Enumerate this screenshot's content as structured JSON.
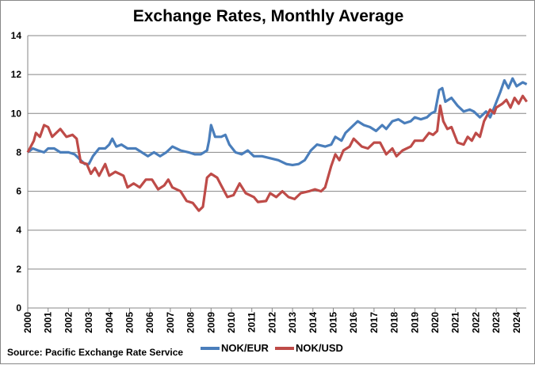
{
  "chart_data": {
    "type": "line",
    "title": "Exchange Rates, Monthly Average",
    "source": "Source: Pacific Exchange Rate Service",
    "xlabel": "",
    "ylabel": "",
    "ylim": [
      0,
      14
    ],
    "yticks": [
      "0",
      "2",
      "4",
      "6",
      "8",
      "10",
      "12",
      "14"
    ],
    "xlim": [
      2000,
      2024.5
    ],
    "xticks": [
      "2000",
      "2001",
      "2002",
      "2003",
      "2004",
      "2005",
      "2006",
      "2007",
      "2008",
      "2009",
      "2010",
      "2011",
      "2012",
      "2013",
      "2014",
      "2015",
      "2016",
      "2017",
      "2018",
      "2019",
      "2020",
      "2021",
      "2022",
      "2023",
      "2024"
    ],
    "grid": true,
    "legend": "bottom",
    "series": [
      {
        "name": "NOK/EUR",
        "color": "#4a7ebb",
        "x": [
          2000,
          2000.25,
          2000.5,
          2000.8,
          2001,
          2001.3,
          2001.6,
          2002,
          2002.3,
          2002.6,
          2002.8,
          2003.0,
          2003.2,
          2003.5,
          2003.8,
          2004.0,
          2004.15,
          2004.35,
          2004.6,
          2004.9,
          2005.3,
          2005.6,
          2005.9,
          2006.2,
          2006.5,
          2006.8,
          2007.1,
          2007.5,
          2007.9,
          2008.2,
          2008.5,
          2008.8,
          2008.9,
          2009.0,
          2009.2,
          2009.5,
          2009.7,
          2009.9,
          2010.2,
          2010.5,
          2010.8,
          2011.1,
          2011.5,
          2011.9,
          2012.3,
          2012.7,
          2013.0,
          2013.3,
          2013.6,
          2013.9,
          2014.2,
          2014.6,
          2014.9,
          2015.1,
          2015.4,
          2015.6,
          2015.9,
          2016.2,
          2016.5,
          2016.8,
          2017.1,
          2017.4,
          2017.6,
          2017.9,
          2018.2,
          2018.5,
          2018.8,
          2019.0,
          2019.3,
          2019.6,
          2019.8,
          2020.0,
          2020.2,
          2020.35,
          2020.5,
          2020.8,
          2021.1,
          2021.4,
          2021.7,
          2021.9,
          2022.2,
          2022.5,
          2022.7,
          2022.9,
          2023.2,
          2023.4,
          2023.6,
          2023.8,
          2024.0,
          2024.3,
          2024.5
        ],
        "y": [
          8.0,
          8.2,
          8.1,
          8.0,
          8.2,
          8.2,
          8.0,
          8.0,
          7.9,
          7.6,
          7.4,
          7.4,
          7.8,
          8.2,
          8.2,
          8.4,
          8.7,
          8.3,
          8.4,
          8.2,
          8.2,
          8.0,
          7.8,
          8.0,
          7.8,
          8.0,
          8.3,
          8.1,
          8.0,
          7.9,
          7.9,
          8.1,
          8.6,
          9.4,
          8.8,
          8.8,
          8.9,
          8.4,
          8.0,
          7.9,
          8.1,
          7.8,
          7.8,
          7.7,
          7.6,
          7.4,
          7.35,
          7.4,
          7.6,
          8.1,
          8.4,
          8.3,
          8.4,
          8.8,
          8.6,
          9.0,
          9.3,
          9.6,
          9.4,
          9.3,
          9.1,
          9.4,
          9.2,
          9.6,
          9.7,
          9.5,
          9.6,
          9.8,
          9.7,
          9.8,
          10.0,
          10.1,
          11.2,
          11.3,
          10.6,
          10.8,
          10.4,
          10.1,
          10.2,
          10.1,
          9.8,
          10.1,
          9.8,
          10.3,
          11.1,
          11.7,
          11.3,
          11.8,
          11.4,
          11.6,
          11.5
        ]
      },
      {
        "name": "NOK/USD",
        "color": "#be4b48",
        "x": [
          2000,
          2000.3,
          2000.4,
          2000.6,
          2000.8,
          2001.0,
          2001.2,
          2001.6,
          2001.9,
          2002.2,
          2002.4,
          2002.6,
          2002.9,
          2003.1,
          2003.3,
          2003.5,
          2003.8,
          2004.0,
          2004.3,
          2004.7,
          2004.9,
          2005.2,
          2005.5,
          2005.8,
          2006.1,
          2006.4,
          2006.7,
          2006.9,
          2007.1,
          2007.5,
          2007.8,
          2008.1,
          2008.4,
          2008.6,
          2008.8,
          2009.0,
          2009.3,
          2009.5,
          2009.8,
          2010.1,
          2010.4,
          2010.7,
          2011.1,
          2011.3,
          2011.7,
          2011.9,
          2012.2,
          2012.5,
          2012.8,
          2013.1,
          2013.4,
          2013.8,
          2014.1,
          2014.4,
          2014.6,
          2014.9,
          2015.1,
          2015.3,
          2015.5,
          2015.8,
          2016.0,
          2016.4,
          2016.7,
          2017.0,
          2017.3,
          2017.6,
          2017.9,
          2018.1,
          2018.4,
          2018.8,
          2019.0,
          2019.4,
          2019.7,
          2019.9,
          2020.1,
          2020.25,
          2020.4,
          2020.6,
          2020.8,
          2021.1,
          2021.4,
          2021.6,
          2021.8,
          2022.0,
          2022.2,
          2022.4,
          2022.7,
          2022.9,
          2023.0,
          2023.3,
          2023.5,
          2023.7,
          2023.9,
          2024.1,
          2024.3,
          2024.5
        ],
        "y": [
          8.0,
          8.6,
          9.0,
          8.8,
          9.4,
          9.3,
          8.8,
          9.2,
          8.8,
          8.9,
          8.7,
          7.5,
          7.4,
          6.9,
          7.2,
          6.8,
          7.4,
          6.8,
          7.0,
          6.8,
          6.2,
          6.4,
          6.2,
          6.6,
          6.6,
          6.1,
          6.3,
          6.6,
          6.2,
          6.0,
          5.5,
          5.4,
          5.0,
          5.2,
          6.7,
          6.9,
          6.7,
          6.3,
          5.7,
          5.8,
          6.4,
          5.9,
          5.7,
          5.45,
          5.5,
          5.9,
          5.7,
          6.0,
          5.7,
          5.6,
          5.9,
          6.0,
          6.1,
          6.0,
          6.2,
          7.3,
          7.9,
          7.6,
          8.1,
          8.3,
          8.7,
          8.3,
          8.2,
          8.5,
          8.5,
          7.9,
          8.2,
          7.8,
          8.1,
          8.3,
          8.6,
          8.6,
          9.0,
          8.9,
          9.1,
          10.4,
          9.6,
          9.2,
          9.3,
          8.5,
          8.4,
          8.8,
          8.6,
          9.0,
          8.8,
          9.6,
          10.2,
          10.0,
          10.3,
          10.5,
          10.7,
          10.3,
          10.8,
          10.5,
          10.9,
          10.6
        ]
      }
    ]
  }
}
